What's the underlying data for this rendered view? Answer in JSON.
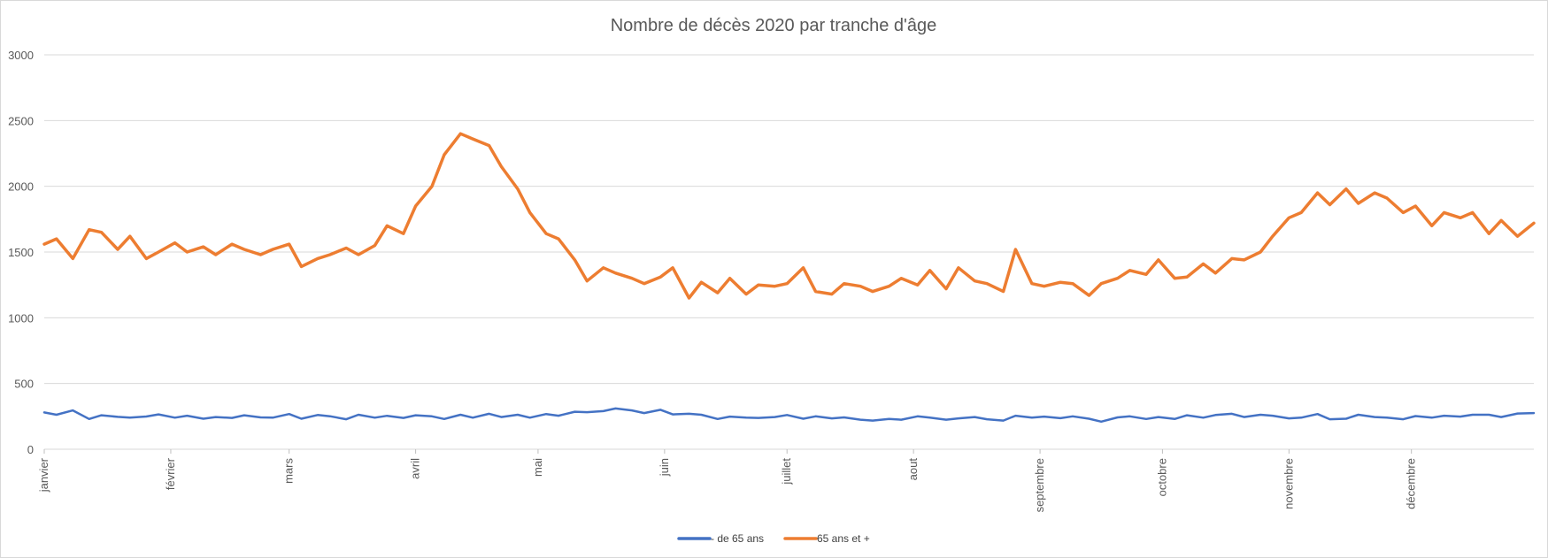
{
  "chart_data": {
    "type": "line",
    "title": "Nombre de décès 2020 par tranche d'âge",
    "xlabel": "",
    "ylabel": "",
    "ylim": [
      0,
      3000
    ],
    "yticks": [
      "0",
      "500",
      "1000",
      "1500",
      "2000",
      "2500",
      "3000"
    ],
    "xticks": [
      "janvier",
      "février",
      "mars",
      "avril",
      "mai",
      "juin",
      "juillet",
      "aout",
      "septembre",
      "octobre",
      "novembre",
      "décembre"
    ],
    "grid": true,
    "legend_position": "bottom",
    "x": [
      1,
      4,
      8,
      12,
      15,
      19,
      22,
      26,
      29,
      33,
      36,
      40,
      43,
      47,
      50,
      54,
      57,
      61,
      64,
      68,
      71,
      75,
      78,
      82,
      85,
      89,
      92,
      96,
      99,
      103,
      106,
      110,
      113,
      117,
      120,
      124,
      127,
      131,
      134,
      138,
      141,
      145,
      148,
      152,
      155,
      159,
      162,
      166,
      169,
      173,
      176,
      180,
      183,
      187,
      190,
      194,
      197,
      201,
      204,
      208,
      211,
      215,
      218,
      222,
      225,
      229,
      232,
      236,
      239,
      243,
      246,
      250,
      253,
      257,
      260,
      264,
      267,
      271,
      274,
      278,
      281,
      285,
      288,
      292,
      295,
      299,
      302,
      306,
      309,
      313,
      316,
      320,
      323,
      327,
      330,
      334,
      337,
      341,
      344,
      348,
      351,
      355,
      358,
      362,
      366
    ],
    "series": [
      {
        "name": "- de 65 ans",
        "color": "#4472C4",
        "values": [
          280,
          262,
          295,
          230,
          258,
          246,
          240,
          249,
          265,
          240,
          255,
          232,
          245,
          238,
          258,
          242,
          240,
          268,
          232,
          260,
          251,
          228,
          262,
          240,
          254,
          238,
          258,
          250,
          230,
          262,
          240,
          270,
          245,
          262,
          240,
          268,
          255,
          285,
          282,
          290,
          310,
          295,
          275,
          300,
          265,
          270,
          262,
          230,
          248,
          240,
          238,
          245,
          260,
          232,
          250,
          235,
          242,
          225,
          218,
          230,
          225,
          250,
          240,
          225,
          235,
          245,
          228,
          218,
          255,
          240,
          248,
          236,
          250,
          232,
          210,
          242,
          250,
          230,
          245,
          230,
          258,
          240,
          260,
          270,
          245,
          262,
          255,
          235,
          240,
          268,
          228,
          232,
          262,
          245,
          240,
          228,
          252,
          240,
          255,
          248,
          262,
          262,
          245,
          272,
          275
        ],
        "width": 2.5
      },
      {
        "name": "65 ans et +",
        "color": "#ED7D31",
        "values": [
          1560,
          1600,
          1450,
          1670,
          1650,
          1520,
          1620,
          1450,
          1500,
          1570,
          1500,
          1540,
          1480,
          1560,
          1520,
          1480,
          1520,
          1560,
          1390,
          1450,
          1480,
          1530,
          1480,
          1550,
          1700,
          1640,
          1850,
          2000,
          2240,
          2400,
          2360,
          2310,
          2150,
          1980,
          1800,
          1640,
          1600,
          1440,
          1280,
          1380,
          1340,
          1300,
          1260,
          1310,
          1380,
          1150,
          1270,
          1190,
          1300,
          1180,
          1250,
          1240,
          1260,
          1380,
          1200,
          1180,
          1260,
          1240,
          1200,
          1240,
          1300,
          1250,
          1360,
          1220,
          1380,
          1280,
          1260,
          1200,
          1520,
          1260,
          1240,
          1270,
          1260,
          1170,
          1260,
          1300,
          1360,
          1330,
          1440,
          1300,
          1310,
          1410,
          1340,
          1450,
          1440,
          1500,
          1620,
          1760,
          1800,
          1950,
          1860,
          1980,
          1870,
          1950,
          1910,
          1800,
          1850,
          1700,
          1800,
          1760,
          1800,
          1640,
          1740,
          1620,
          1720
        ],
        "width": 3.5
      }
    ]
  }
}
